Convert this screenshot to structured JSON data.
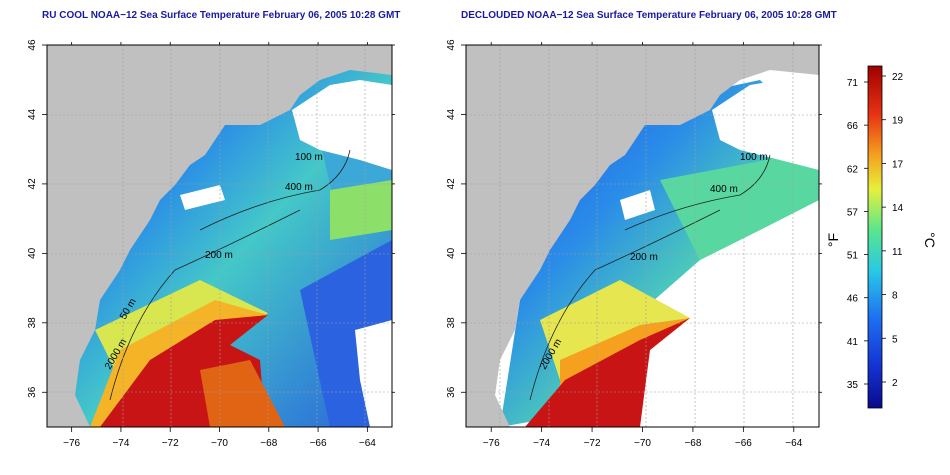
{
  "panels": [
    {
      "title": "RU COOL NOAA−12 Sea Surface Temperature February 06, 2005 10:28 GMT",
      "contour_labels": [
        "100 m",
        "400 m",
        "200 m",
        "50 m",
        "2000 m"
      ]
    },
    {
      "title": "DECLOUDED NOAA−12 Sea Surface Temperature February 06, 2005 10:28 GMT",
      "contour_labels": [
        "100 m",
        "400 m",
        "200 m",
        "2000 m"
      ]
    }
  ],
  "axes": {
    "lon_ticks": [
      "−76",
      "−74",
      "−72",
      "−70",
      "−68",
      "−66",
      "−64"
    ],
    "lat_ticks": [
      "36",
      "38",
      "40",
      "42",
      "44",
      "46"
    ],
    "lon_range": [
      -77,
      -63
    ],
    "lat_range": [
      35,
      46
    ]
  },
  "colorbar": {
    "f_label": "°F",
    "c_label": "°C",
    "f_ticks": [
      "71",
      "66",
      "62",
      "57",
      "51",
      "46",
      "41",
      "35"
    ],
    "c_ticks": [
      "22",
      "19",
      "17",
      "14",
      "11",
      "8",
      "5",
      "2"
    ]
  },
  "colors": {
    "land": "#c0c0c0",
    "title": "#1a1aa0",
    "warm": "#a00000",
    "cold": "#0b1c9e"
  }
}
